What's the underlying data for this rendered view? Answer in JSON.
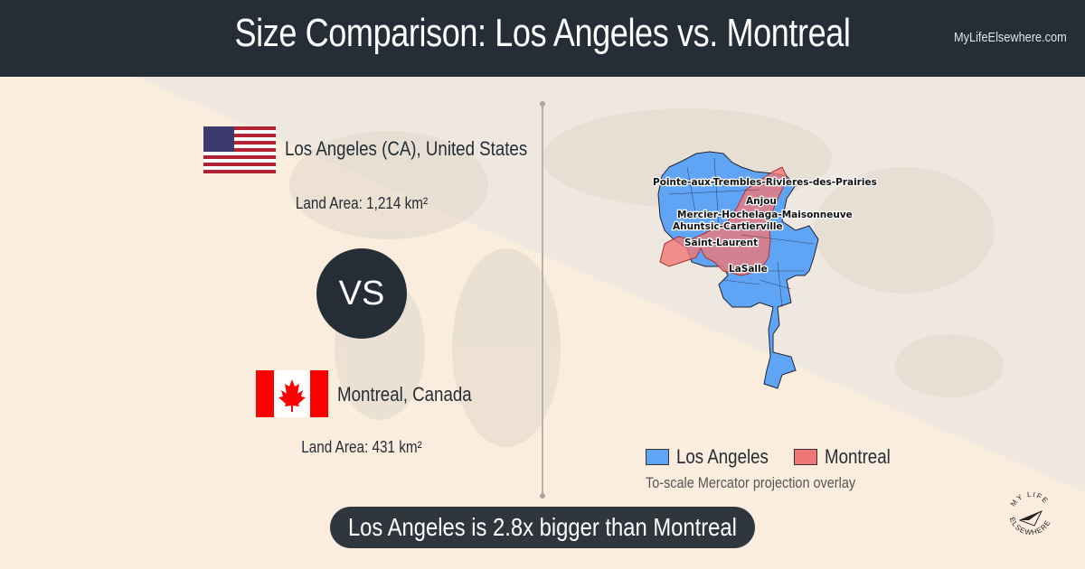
{
  "header": {
    "title": "Size Comparison: Los Angeles vs. Montreal",
    "site": "MyLifeElsewhere.com"
  },
  "city1": {
    "name": "Los Angeles (CA), United States",
    "area": "Land Area: 1,214 km²"
  },
  "vs": "VS",
  "city2": {
    "name": "Montreal, Canada",
    "area": "Land Area: 431 km²"
  },
  "map": {
    "labels": [
      "Pointe-aux-Trembles-Rivieres-des-Prairies",
      "Anjou",
      "Mercier-Hochelaga-Maisonneuve",
      "Ahuntsic-Cartierville",
      "Saint-Laurent",
      "LaSalle"
    ],
    "colors": {
      "la": "#5fa4f5",
      "montreal": "#f07777"
    }
  },
  "legend": {
    "la": "Los Angeles",
    "montreal": "Montreal",
    "caption": "To-scale Mercator projection overlay"
  },
  "summary": "Los Angeles is 2.8x bigger than Montreal",
  "logo": {
    "text": "MY LIFE ELSEWHERE"
  }
}
